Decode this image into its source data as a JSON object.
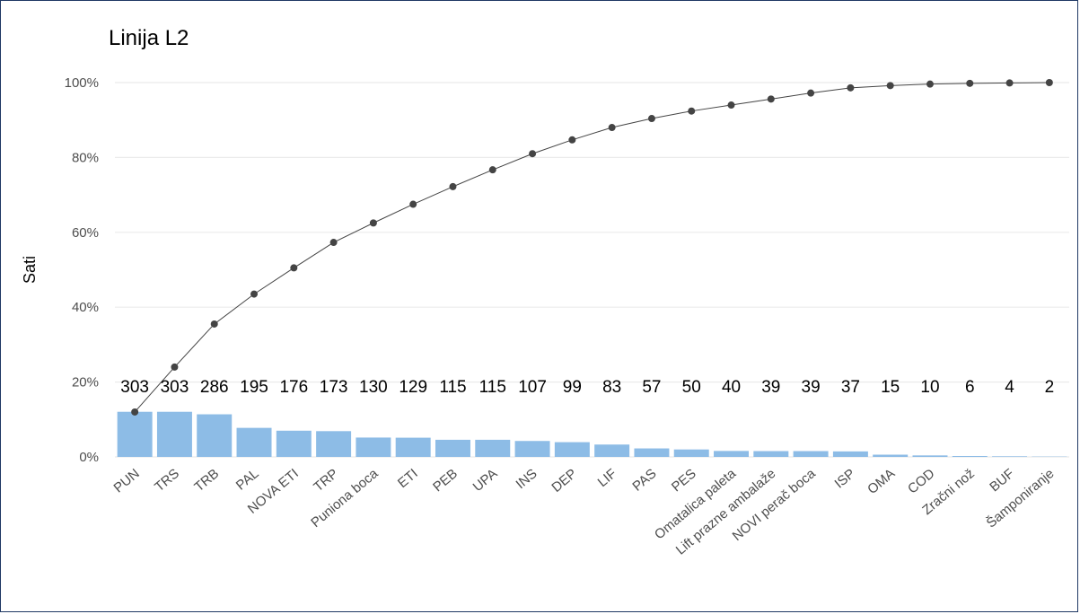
{
  "chart_data": {
    "type": "bar",
    "title": "Linija L2",
    "xlabel": "",
    "ylabel": "Sati",
    "ylim_percent": [
      0,
      100
    ],
    "y_ticks": [
      "0%",
      "20%",
      "40%",
      "60%",
      "80%",
      "100%"
    ],
    "grid": true,
    "legend": "none",
    "bar_color": "#8dbce6",
    "line_color": "#444444",
    "categories": [
      "PUN",
      "TRS",
      "TRB",
      "PAL",
      "NOVA ETI",
      "TRP",
      "Puniona boca",
      "ETI",
      "PEB",
      "UPA",
      "INS",
      "DEP",
      "LIF",
      "PAS",
      "PES",
      "Omatalica paleta",
      "Lift prazne ambalaže",
      "NOVI perač boca",
      "ISP",
      "OMA",
      "COD",
      "Zračni nož",
      "BUF",
      "Šamponiranje"
    ],
    "series": [
      {
        "type": "bar",
        "values": [
          303,
          303,
          286,
          195,
          176,
          173,
          130,
          129,
          115,
          115,
          107,
          99,
          83,
          57,
          50,
          40,
          39,
          39,
          37,
          15,
          10,
          6,
          4,
          2
        ]
      },
      {
        "type": "line",
        "values": [
          12,
          24,
          35.5,
          43.5,
          50.5,
          57.3,
          62.5,
          67.5,
          72.2,
          76.7,
          81,
          84.7,
          88,
          90.4,
          92.4,
          94,
          95.6,
          97.2,
          98.6,
          99.2,
          99.6,
          99.8,
          99.9,
          100
        ]
      }
    ]
  }
}
